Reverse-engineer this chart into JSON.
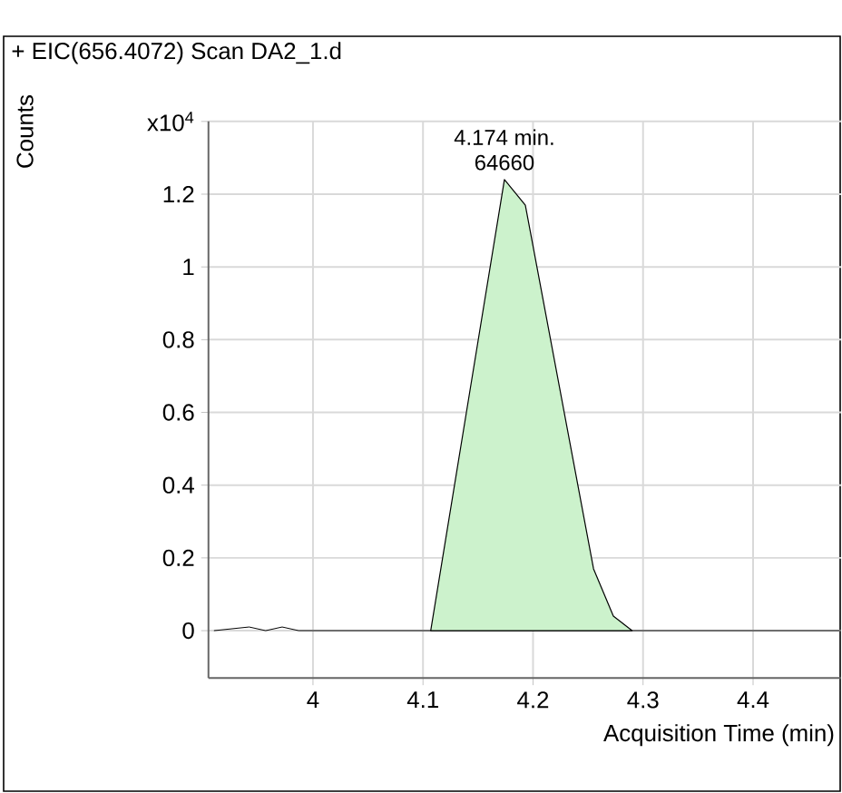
{
  "chart_data": {
    "type": "area",
    "title": "+ EIC(656.4072) Scan DA2_1.d",
    "xlabel": "Acquisition Time (min)",
    "ylabel": "Counts",
    "series": [
      {
        "type": "line",
        "color": "#000000",
        "x": [
          3.91,
          3.942,
          3.957,
          3.972,
          3.987,
          4.107,
          4.29,
          4.48
        ],
        "values": [
          0,
          0.01,
          0,
          0.01,
          0,
          0,
          0,
          0
        ]
      },
      {
        "color": "#ccf2cc",
        "x": [
          4.107,
          4.174,
          4.193,
          4.255,
          4.273,
          4.29
        ],
        "values": [
          0,
          1.24,
          1.17,
          0.17,
          0.04,
          0
        ]
      }
    ],
    "xlim": [
      3.905,
      4.48
    ],
    "ylim": [
      -0.13,
      1.4
    ],
    "xticks": [
      4,
      4.1,
      4.2,
      4.3,
      4.4
    ],
    "yticks": [
      0,
      0.2,
      0.4,
      0.6,
      0.8,
      1,
      1.2,
      {
        "value": 1.4,
        "label": "x10$^{4}$"
      }
    ],
    "annotations": [
      {
        "text": "4.174 min.",
        "x": 4.174,
        "y": 1.24
      },
      {
        "text": "64660",
        "x": 4.174,
        "y": 1.24
      }
    ],
    "grid": true
  }
}
